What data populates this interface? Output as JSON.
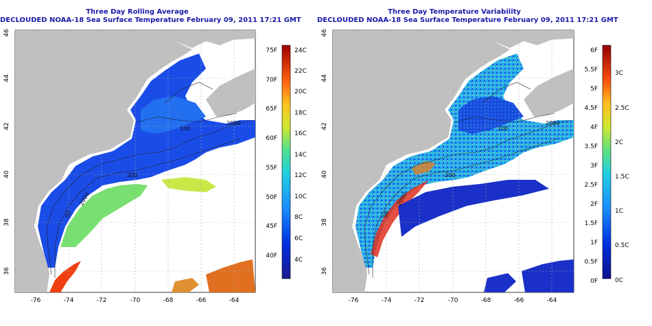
{
  "left": {
    "title": "Three Day Rolling Average",
    "subtitle": "DECLOUDED NOAA-18 Sea Surface Temperature February 09, 2011 17:21 GMT",
    "x_ticks": [
      "-76",
      "-74",
      "-72",
      "-70",
      "-68",
      "-66",
      "-64"
    ],
    "y_ticks": [
      "36",
      "38",
      "40",
      "42",
      "44",
      "46"
    ],
    "contour_labels": [
      "100",
      "2000",
      "200",
      "50",
      "2000"
    ],
    "colorbar_f": [
      "75F",
      "70F",
      "65F",
      "60F",
      "55F",
      "50F",
      "45F",
      "40F"
    ],
    "colorbar_c": [
      "24C",
      "22C",
      "20C",
      "18C",
      "16C",
      "14C",
      "12C",
      "10C",
      "8C",
      "6C",
      "4C"
    ]
  },
  "right": {
    "title": "Three Day Temperature Variability",
    "subtitle": "DECLOUDED NOAA-18 Sea Surface Temperature February 09, 2011 17:21 GMT",
    "x_ticks": [
      "-76",
      "-74",
      "-72",
      "-70",
      "-68",
      "-66",
      "-64"
    ],
    "y_ticks": [
      "36",
      "38",
      "40",
      "42",
      "44",
      "46"
    ],
    "contour_labels": [
      "100",
      "2000",
      "200",
      "50",
      "2000"
    ],
    "colorbar_f": [
      "6F",
      "5.5F",
      "5F",
      "4.5F",
      "4F",
      "3.5F",
      "3F",
      "2.5F",
      "2F",
      "1.5F",
      "1F",
      "0.5F",
      "0F"
    ],
    "colorbar_c": [
      "3C",
      "2.5C",
      "2C",
      "1.5C",
      "1C",
      "0.5C",
      "0C"
    ]
  },
  "colors": {
    "land": "#c0c0c0",
    "title": "#1a1aa8"
  }
}
